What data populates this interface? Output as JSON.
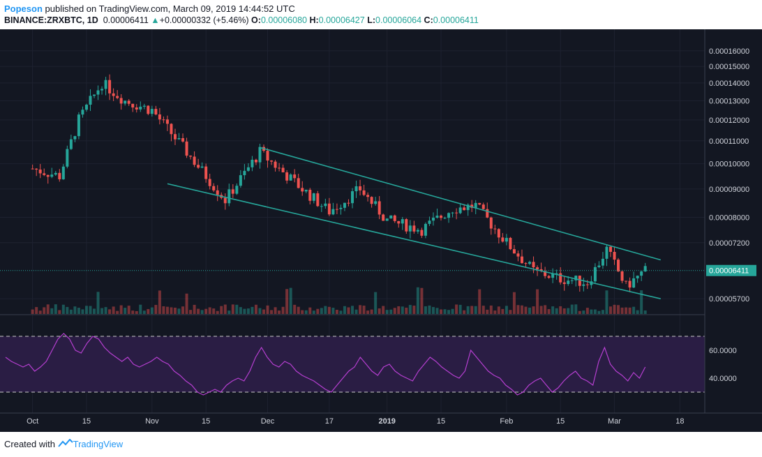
{
  "header": {
    "author": "Popeson",
    "published": "published on TradingView.com, March 09, 2019 14:44:52 UTC",
    "symbol": "BINANCE:ZRXBTC, 1D",
    "price": "0.00006411",
    "change": "+0.00000332 (+5.46%)",
    "o_label": "O:",
    "o_value": "0.00006080",
    "h_label": "H:",
    "h_value": "0.00006427",
    "l_label": "L:",
    "l_value": "0.00006064",
    "c_label": "C:",
    "c_value": "0.00006411"
  },
  "footer": {
    "created": "Created with",
    "brand": "TradingView"
  },
  "colors": {
    "bg": "#131722",
    "up": "#26a69a",
    "down": "#ef5350",
    "channel": "#26a69a",
    "rsi": "#b63fd1",
    "rsi_band": "#2a1d44"
  },
  "chart_data": {
    "type": "candlestick",
    "price_axis": {
      "scale": "log",
      "ticks": [
        "0.00016000",
        "0.00015000",
        "0.00014000",
        "0.00013000",
        "0.00012000",
        "0.00011000",
        "0.00010000",
        "0.00009000",
        "0.00008000",
        "0.00007200",
        "0.00005700"
      ],
      "last_price_label": "0.00006411"
    },
    "time_axis": {
      "ticks": [
        "Oct",
        "15",
        "Nov",
        "15",
        "Dec",
        "17",
        "2019",
        "15",
        "Feb",
        "15",
        "Mar",
        "18"
      ]
    },
    "key_points": [
      {
        "date": "2018-10-01",
        "close": 9.8e-05
      },
      {
        "date": "2018-10-08",
        "close": 9.5e-05
      },
      {
        "date": "2018-10-13",
        "close": 0.00012
      },
      {
        "date": "2018-10-19",
        "close": 0.00014
      },
      {
        "date": "2018-10-25",
        "close": 0.00013
      },
      {
        "date": "2018-11-01",
        "close": 0.000125
      },
      {
        "date": "2018-11-10",
        "close": 0.000105
      },
      {
        "date": "2018-11-20",
        "close": 8.6e-05
      },
      {
        "date": "2018-11-29",
        "close": 0.000105
      },
      {
        "date": "2018-12-10",
        "close": 9e-05
      },
      {
        "date": "2018-12-17",
        "close": 8.2e-05
      },
      {
        "date": "2018-12-25",
        "close": 9e-05
      },
      {
        "date": "2019-01-01",
        "close": 7.9e-05
      },
      {
        "date": "2019-01-10",
        "close": 7.6e-05
      },
      {
        "date": "2019-01-18",
        "close": 8.3e-05
      },
      {
        "date": "2019-01-24",
        "close": 8.4e-05
      },
      {
        "date": "2019-02-01",
        "close": 7.2e-05
      },
      {
        "date": "2019-02-08",
        "close": 6.4e-05
      },
      {
        "date": "2019-02-15",
        "close": 6.2e-05
      },
      {
        "date": "2019-02-22",
        "close": 6.1e-05
      },
      {
        "date": "2019-02-27",
        "close": 7e-05
      },
      {
        "date": "2019-03-04",
        "close": 6e-05
      },
      {
        "date": "2019-03-09",
        "close": 6.41e-05
      }
    ],
    "channel": {
      "upper": [
        {
          "date": "2018-11-29",
          "price": 0.000107
        },
        {
          "date": "2019-03-13",
          "price": 6.7e-05
        }
      ],
      "lower": [
        {
          "date": "2018-11-05",
          "price": 9.2e-05
        },
        {
          "date": "2019-03-13",
          "price": 5.7e-05
        }
      ]
    },
    "rsi": {
      "axis_ticks": [
        "60.0000",
        "40.0000"
      ],
      "band": [
        30,
        70
      ],
      "values": [
        55,
        52,
        50,
        48,
        50,
        45,
        48,
        52,
        60,
        68,
        72,
        68,
        60,
        58,
        65,
        70,
        68,
        62,
        58,
        55,
        52,
        55,
        50,
        48,
        50,
        52,
        55,
        52,
        50,
        45,
        42,
        38,
        35,
        30,
        28,
        30,
        32,
        30,
        35,
        38,
        40,
        38,
        45,
        55,
        62,
        55,
        50,
        48,
        52,
        50,
        45,
        42,
        40,
        38,
        35,
        32,
        30,
        35,
        40,
        45,
        48,
        55,
        50,
        45,
        42,
        48,
        50,
        45,
        42,
        40,
        38,
        45,
        50,
        55,
        52,
        48,
        45,
        42,
        40,
        45,
        60,
        55,
        50,
        45,
        42,
        40,
        35,
        32,
        28,
        30,
        35,
        38,
        40,
        35,
        30,
        33,
        38,
        42,
        45,
        40,
        38,
        35,
        52,
        62,
        50,
        45,
        42,
        38,
        44,
        40,
        48
      ]
    }
  }
}
